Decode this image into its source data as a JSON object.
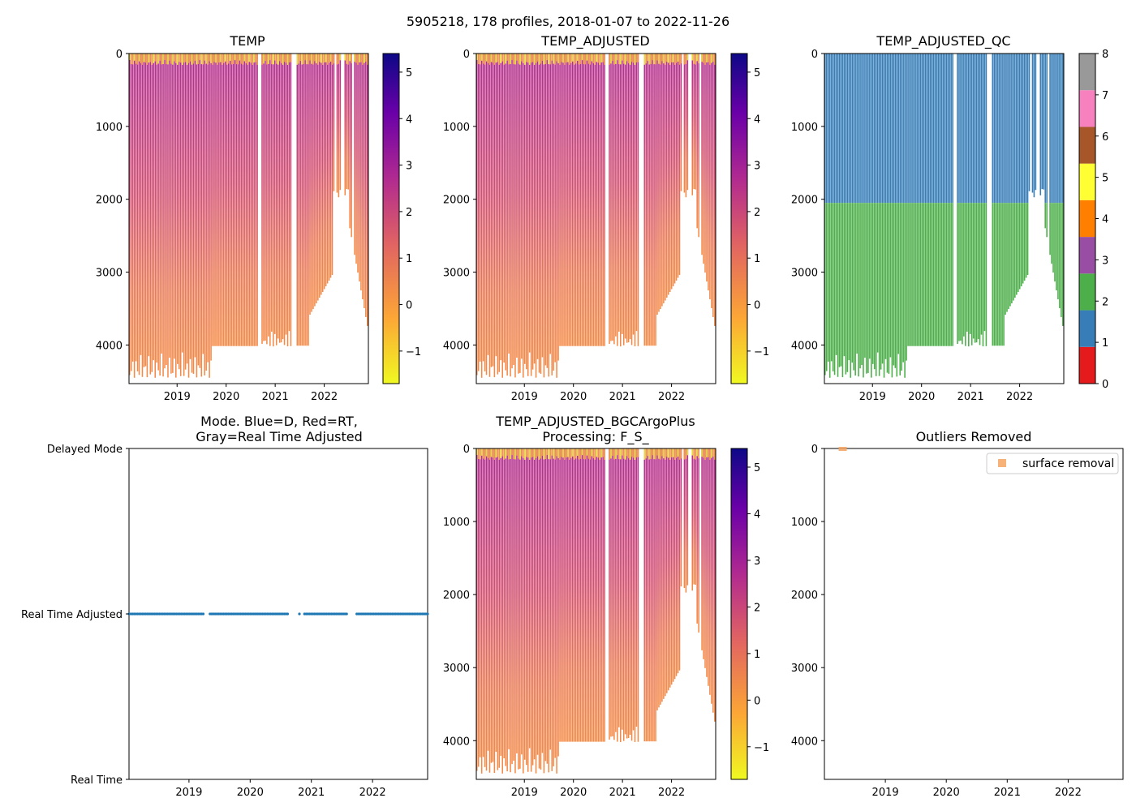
{
  "figure": {
    "suptitle": "5905218, 178 profiles, 2018-01-07 to 2022-11-26"
  },
  "colors": {
    "qc": [
      "#e41a1c",
      "#377eb8",
      "#4daf4a",
      "#984ea3",
      "#ff7f00",
      "#ffff33",
      "#a65628",
      "#f781bf",
      "#999999"
    ],
    "mode_points": "#1f77b4",
    "outlier": "#f4a460",
    "plasma_stops": [
      "#0d0887",
      "#6a00a8",
      "#b12a90",
      "#e16462",
      "#fca636",
      "#f0f921"
    ]
  },
  "chart_data": [
    {
      "id": "temp",
      "type": "heatmap",
      "title": "TEMP",
      "xlabel": "",
      "ylabel": "",
      "x_ticks": [
        "2019",
        "2020",
        "2021",
        "2022"
      ],
      "y_ticks": [
        "0",
        "1000",
        "2000",
        "3000",
        "4000"
      ],
      "xlim": [
        2018.02,
        2022.9
      ],
      "ylim": [
        4530,
        0
      ],
      "colorbar": {
        "ticks": [
          "5",
          "4",
          "3",
          "2",
          "1",
          "0",
          "−1"
        ],
        "range": [
          -1.7,
          5.4
        ],
        "cmap": "plasma_r"
      }
    },
    {
      "id": "temp-adjusted",
      "type": "heatmap",
      "title": "TEMP_ADJUSTED",
      "x_ticks": [
        "2019",
        "2020",
        "2021",
        "2022"
      ],
      "y_ticks": [
        "0",
        "1000",
        "2000",
        "3000",
        "4000"
      ],
      "xlim": [
        2018.02,
        2022.9
      ],
      "ylim": [
        4530,
        0
      ],
      "colorbar": {
        "ticks": [
          "5",
          "4",
          "3",
          "2",
          "1",
          "0",
          "−1"
        ],
        "range": [
          -1.7,
          5.4
        ],
        "cmap": "plasma_r"
      }
    },
    {
      "id": "temp-adjusted-qc",
      "type": "heatmap",
      "title": "TEMP_ADJUSTED_QC",
      "x_ticks": [
        "2019",
        "2020",
        "2021",
        "2022"
      ],
      "y_ticks": [
        "0",
        "1000",
        "2000",
        "3000",
        "4000"
      ],
      "xlim": [
        2018.02,
        2022.9
      ],
      "ylim": [
        4530,
        0
      ],
      "qc_boundary_depth": 2050,
      "qc_above": 1,
      "qc_below": 2,
      "colorbar": {
        "ticks": [
          "8",
          "7",
          "6",
          "5",
          "4",
          "3",
          "2",
          "1",
          "0"
        ],
        "range": [
          0,
          8
        ],
        "cmap": "qc"
      }
    },
    {
      "id": "mode",
      "type": "scatter",
      "title_line1": "Mode. Blue=D, Red=RT,",
      "title_line2": "Gray=Real Time Adjusted",
      "x_ticks": [
        "2019",
        "2020",
        "2021",
        "2022"
      ],
      "y_categories": [
        "Delayed Mode",
        "Real Time Adjusted",
        "Real Time"
      ],
      "xlim": [
        2018.02,
        2022.9
      ],
      "series": [
        {
          "name": "Real Time Adjusted",
          "value": 1
        }
      ]
    },
    {
      "id": "temp-adjusted-bgc",
      "type": "heatmap",
      "title_line1": "TEMP_ADJUSTED_BGCArgoPlus",
      "title_line2": "Processing: F_S_",
      "x_ticks": [
        "2019",
        "2020",
        "2021",
        "2022"
      ],
      "y_ticks": [
        "0",
        "1000",
        "2000",
        "3000",
        "4000"
      ],
      "xlim": [
        2018.02,
        2022.9
      ],
      "ylim": [
        4530,
        0
      ],
      "colorbar": {
        "ticks": [
          "5",
          "4",
          "3",
          "2",
          "1",
          "0",
          "−1"
        ],
        "range": [
          -1.7,
          5.4
        ],
        "cmap": "plasma_r"
      }
    },
    {
      "id": "outliers",
      "type": "scatter",
      "title": "Outliers Removed",
      "x_ticks": [
        "2019",
        "2020",
        "2021",
        "2022"
      ],
      "y_ticks": [
        "0",
        "1000",
        "2000",
        "3000",
        "4000"
      ],
      "xlim": [
        2018.0,
        2022.9
      ],
      "ylim": [
        4530,
        0
      ],
      "legend": {
        "label": "surface removal",
        "loc": "top-right"
      },
      "series": [
        {
          "name": "surface removal",
          "x": [
            2018.3
          ],
          "y": [
            0
          ]
        }
      ]
    }
  ]
}
